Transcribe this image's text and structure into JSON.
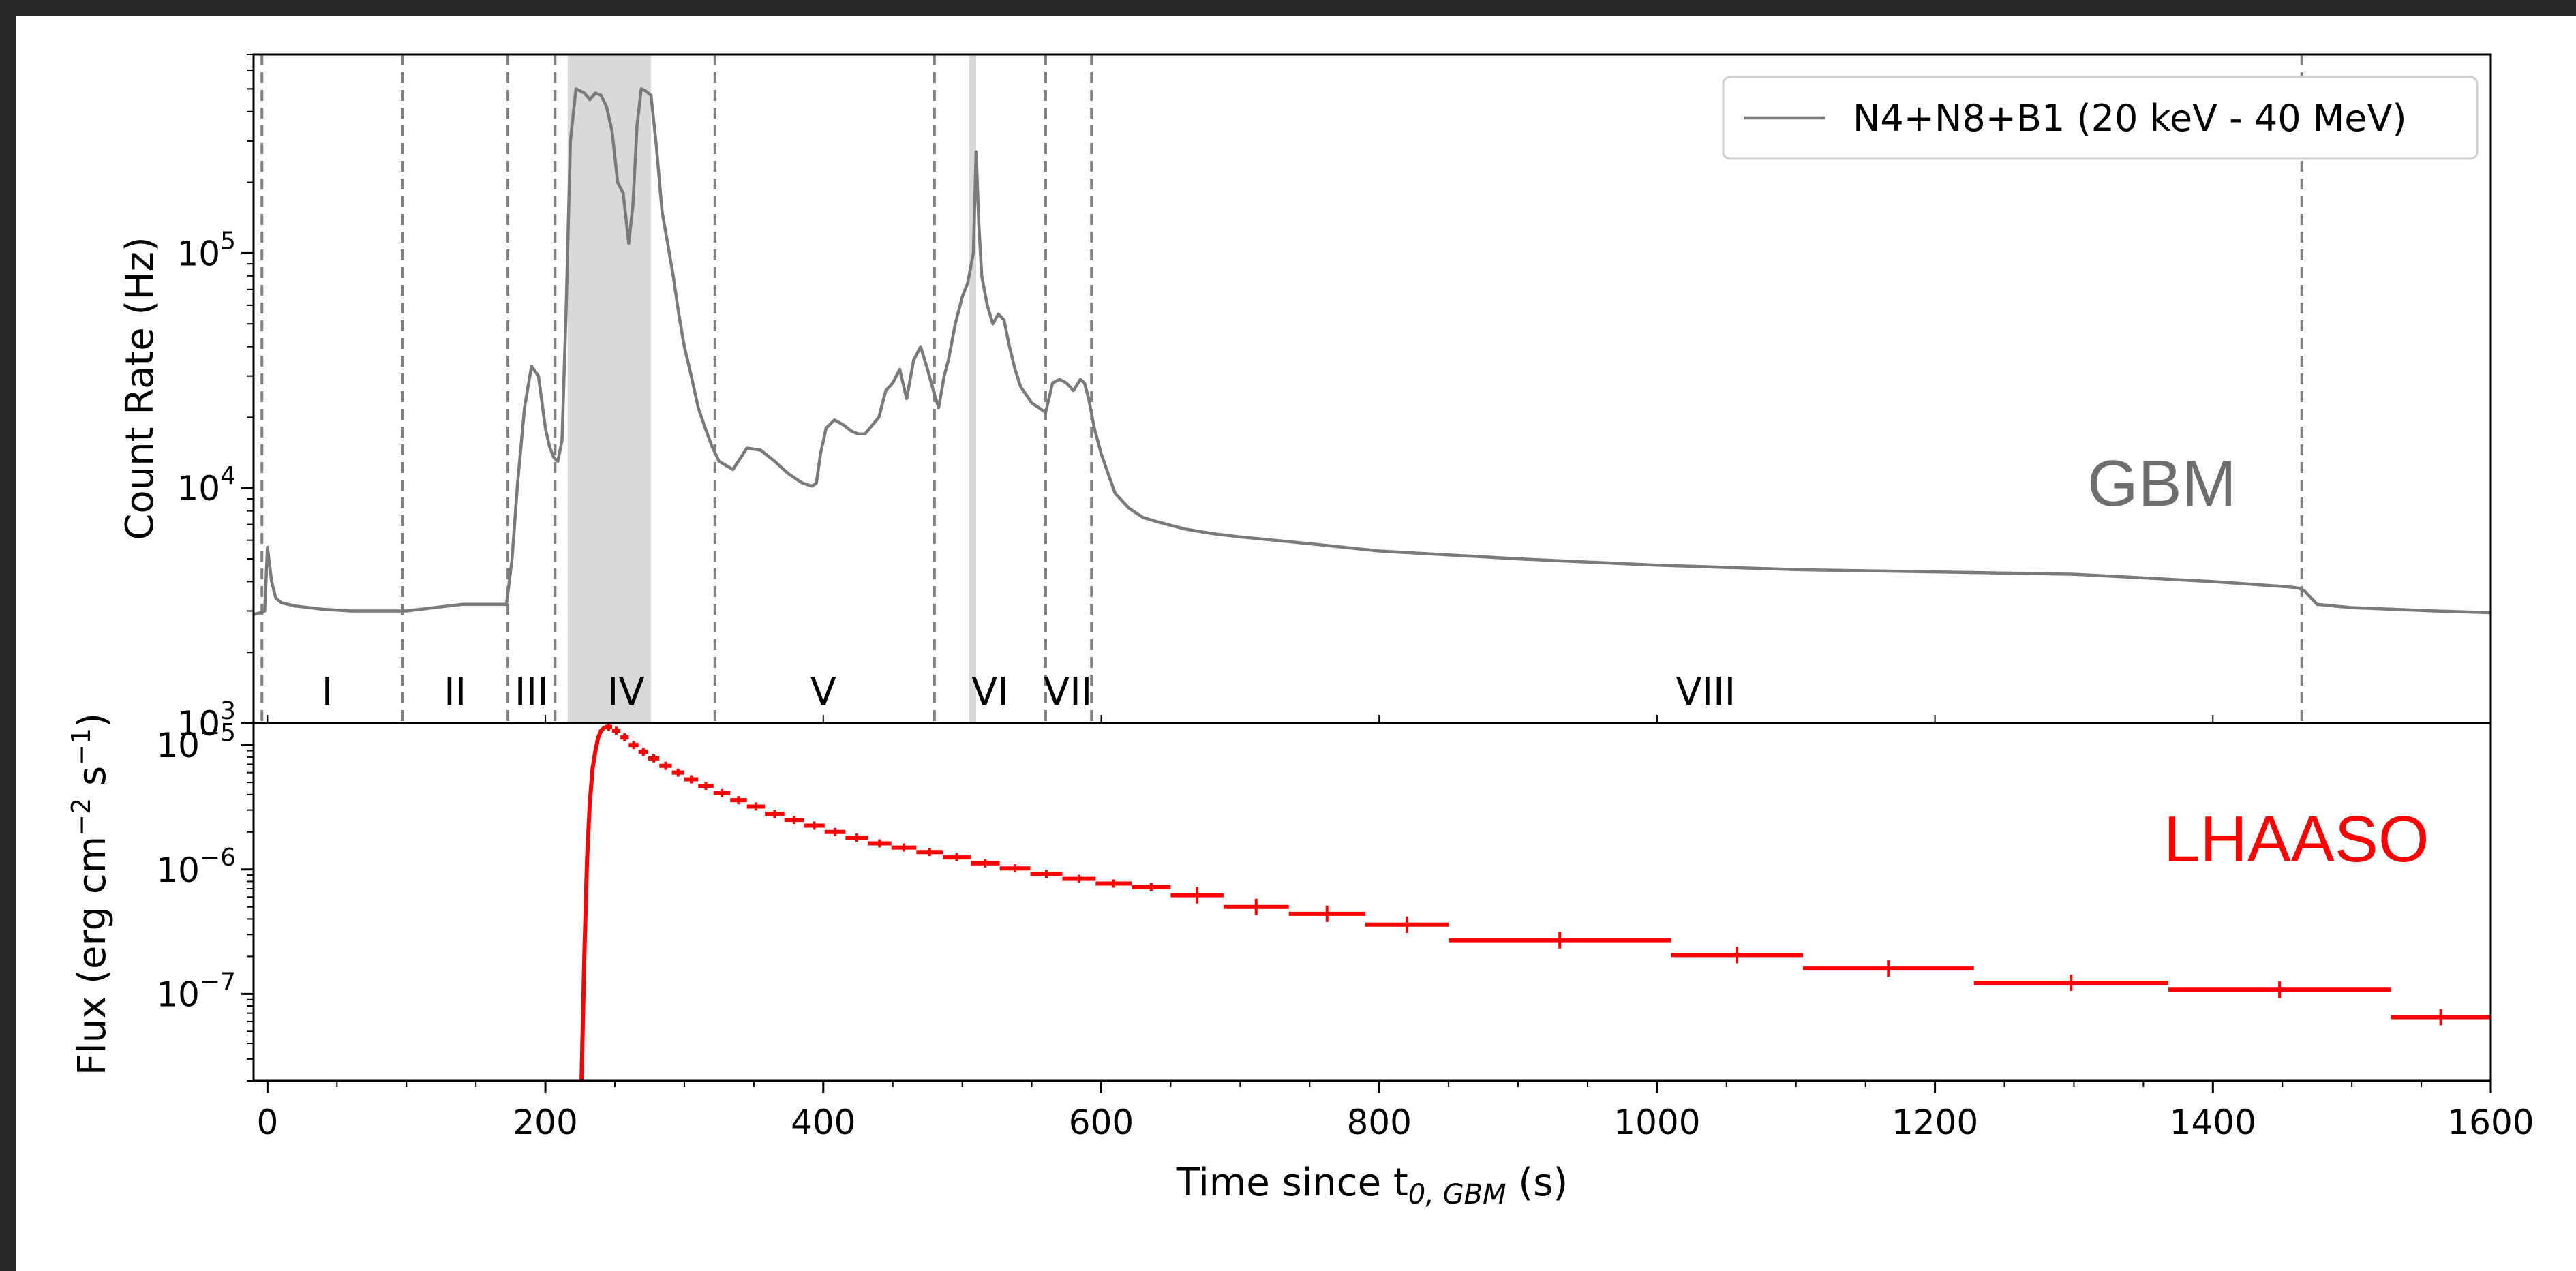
{
  "chart_data": [
    {
      "panel": "top",
      "type": "line",
      "ylabel": "Count Rate (Hz)",
      "yscale": "log",
      "xlim": [
        -10,
        1600
      ],
      "ylim": [
        1000,
        700000
      ],
      "ytick_labels": [
        {
          "value": 1000,
          "base": "10",
          "exp": "3"
        },
        {
          "value": 10000,
          "base": "10",
          "exp": "4"
        },
        {
          "value": 100000,
          "base": "10",
          "exp": "5"
        }
      ],
      "grid": false,
      "legend": {
        "placement": "top-right",
        "entries": [
          "N4+N8+B1 (20 keV - 40 MeV)"
        ]
      },
      "panel_tag": "GBM",
      "colors": {
        "line": "#7a7a7a",
        "tag": "#6e6e6e",
        "shade": "#d9d9d9",
        "dash": "#808080"
      },
      "series": [
        {
          "name": "N4+N8+B1 (20 keV - 40 MeV)",
          "x": [
            -10,
            -5,
            -2,
            0,
            1,
            3,
            6,
            10,
            20,
            40,
            60,
            80,
            100,
            120,
            140,
            160,
            172,
            176,
            180,
            185,
            190,
            195,
            200,
            203,
            206,
            209,
            212,
            215,
            218,
            222,
            228,
            232,
            236,
            240,
            244,
            248,
            252,
            256,
            260,
            263,
            266,
            269,
            272,
            276,
            280,
            284,
            288,
            292,
            296,
            300,
            305,
            310,
            315,
            320,
            325,
            335,
            345,
            355,
            365,
            375,
            385,
            392,
            395,
            398,
            402,
            408,
            415,
            420,
            425,
            430,
            440,
            445,
            450,
            455,
            460,
            465,
            470,
            475,
            480,
            483,
            487,
            490,
            495,
            500,
            504,
            508,
            510,
            512,
            514,
            518,
            522,
            526,
            530,
            534,
            538,
            542,
            546,
            550,
            555,
            560,
            565,
            570,
            575,
            580,
            585,
            588,
            591,
            595,
            600,
            605,
            610,
            620,
            630,
            640,
            660,
            680,
            700,
            750,
            800,
            900,
            1000,
            1100,
            1200,
            1300,
            1400,
            1455,
            1462,
            1466,
            1475,
            1500,
            1530,
            1560,
            1600
          ],
          "y": [
            2900,
            2950,
            3000,
            5600,
            5000,
            4000,
            3400,
            3250,
            3150,
            3050,
            3000,
            3000,
            3000,
            3100,
            3200,
            3200,
            3200,
            5000,
            10500,
            22000,
            33000,
            30000,
            18000,
            15000,
            13500,
            13000,
            16000,
            60000,
            300000,
            500000,
            480000,
            450000,
            480000,
            470000,
            420000,
            330000,
            200000,
            180000,
            110000,
            160000,
            350000,
            500000,
            490000,
            470000,
            280000,
            150000,
            110000,
            80000,
            55000,
            40000,
            30000,
            22000,
            18000,
            15000,
            13000,
            12000,
            14800,
            14500,
            13000,
            11500,
            10500,
            10200,
            10500,
            14000,
            18000,
            19500,
            18500,
            17500,
            17000,
            17000,
            20000,
            26000,
            28000,
            32000,
            24000,
            35000,
            40000,
            32000,
            25000,
            22000,
            30000,
            35000,
            50000,
            65000,
            75000,
            100000,
            270000,
            130000,
            80000,
            60000,
            50000,
            55000,
            52000,
            40000,
            32000,
            27000,
            25000,
            23000,
            22000,
            21000,
            28000,
            29000,
            28000,
            26000,
            29000,
            28000,
            24000,
            18000,
            14000,
            11500,
            9500,
            8200,
            7500,
            7200,
            6700,
            6400,
            6200,
            5800,
            5400,
            5000,
            4700,
            4500,
            4400,
            4300,
            4000,
            3800,
            3750,
            3650,
            3200,
            3100,
            3050,
            3000,
            2950
          ]
        }
      ],
      "vertical_dashed_lines_at": [
        -4,
        97,
        173,
        207,
        322,
        480,
        560,
        593,
        1464
      ],
      "shaded_intervals": [
        [
          216,
          276
        ],
        [
          505,
          510
        ]
      ],
      "period_labels": [
        {
          "x": 43,
          "label": "I"
        },
        {
          "x": 135,
          "label": "II"
        },
        {
          "x": 190,
          "label": "III"
        },
        {
          "x": 258,
          "label": "IV"
        },
        {
          "x": 400,
          "label": "V"
        },
        {
          "x": 520,
          "label": "VI"
        },
        {
          "x": 576,
          "label": "VII"
        },
        {
          "x": 1035,
          "label": "VIII"
        }
      ]
    },
    {
      "panel": "bottom",
      "type": "step",
      "ylabel_parts": {
        "pre": "Flux (erg cm",
        "exp1": "−2",
        "mid": " s",
        "exp2": "−1",
        "post": ")"
      },
      "xlabel_parts": {
        "pre": "Time since t",
        "sub": "0, GBM",
        "post": " (s)"
      },
      "yscale": "log",
      "xlim": [
        -10,
        1600
      ],
      "ylim": [
        2e-08,
        1.5e-05
      ],
      "ytick_labels": [
        {
          "value": 1e-07,
          "base": "10",
          "exp": "−7"
        },
        {
          "value": 1e-06,
          "base": "10",
          "exp": "−6"
        },
        {
          "value": 1e-05,
          "base": "10",
          "exp": "−5"
        }
      ],
      "xticks": [
        0,
        200,
        400,
        600,
        800,
        1000,
        1200,
        1400,
        1600
      ],
      "grid": false,
      "panel_tag": "LHAASO",
      "colors": {
        "line": "#ff0000",
        "tag": "#ff0000"
      },
      "series": [
        {
          "rise_x": [
            226,
            228,
            230,
            232,
            234,
            236,
            238,
            240,
            243
          ],
          "rise_y": [
            2e-08,
            2e-07,
            1.2e-06,
            3.5e-06,
            6.5e-06,
            9e-06,
            1.15e-05,
            1.3e-05,
            1.4e-05
          ],
          "decay_bins": [
            {
              "x0": 243,
              "x1": 248,
              "y": 1.4e-05
            },
            {
              "x0": 248,
              "x1": 254,
              "y": 1.3e-05
            },
            {
              "x0": 254,
              "x1": 260,
              "y": 1.15e-05
            },
            {
              "x0": 260,
              "x1": 267,
              "y": 1e-05
            },
            {
              "x0": 267,
              "x1": 274,
              "y": 8.8e-06
            },
            {
              "x0": 274,
              "x1": 282,
              "y": 7.8e-06
            },
            {
              "x0": 282,
              "x1": 291,
              "y": 6.8e-06
            },
            {
              "x0": 291,
              "x1": 300,
              "y": 6e-06
            },
            {
              "x0": 300,
              "x1": 310,
              "y": 5.3e-06
            },
            {
              "x0": 310,
              "x1": 321,
              "y": 4.7e-06
            },
            {
              "x0": 321,
              "x1": 333,
              "y": 4.1e-06
            },
            {
              "x0": 333,
              "x1": 345,
              "y": 3.6e-06
            },
            {
              "x0": 345,
              "x1": 358,
              "y": 3.2e-06
            },
            {
              "x0": 358,
              "x1": 372,
              "y": 2.8e-06
            },
            {
              "x0": 372,
              "x1": 386,
              "y": 2.5e-06
            },
            {
              "x0": 386,
              "x1": 401,
              "y": 2.25e-06
            },
            {
              "x0": 401,
              "x1": 416,
              "y": 2e-06
            },
            {
              "x0": 416,
              "x1": 432,
              "y": 1.8e-06
            },
            {
              "x0": 432,
              "x1": 449,
              "y": 1.62e-06
            },
            {
              "x0": 449,
              "x1": 467,
              "y": 1.5e-06
            },
            {
              "x0": 467,
              "x1": 486,
              "y": 1.38e-06
            },
            {
              "x0": 486,
              "x1": 506,
              "y": 1.25e-06
            },
            {
              "x0": 506,
              "x1": 527,
              "y": 1.12e-06
            },
            {
              "x0": 527,
              "x1": 549,
              "y": 1.02e-06
            },
            {
              "x0": 549,
              "x1": 572,
              "y": 9.2e-07
            },
            {
              "x0": 572,
              "x1": 596,
              "y": 8.4e-07
            },
            {
              "x0": 596,
              "x1": 622,
              "y": 7.7e-07
            },
            {
              "x0": 622,
              "x1": 650,
              "y": 7.2e-07
            },
            {
              "x0": 650,
              "x1": 688,
              "y": 6.2e-07
            },
            {
              "x0": 688,
              "x1": 735,
              "y": 5e-07
            },
            {
              "x0": 735,
              "x1": 790,
              "y": 4.4e-07
            },
            {
              "x0": 790,
              "x1": 850,
              "y": 3.6e-07
            },
            {
              "x0": 850,
              "x1": 1010,
              "y": 2.7e-07
            },
            {
              "x0": 1010,
              "x1": 1105,
              "y": 2.05e-07
            },
            {
              "x0": 1105,
              "x1": 1228,
              "y": 1.6e-07
            },
            {
              "x0": 1228,
              "x1": 1368,
              "y": 1.23e-07
            },
            {
              "x0": 1368,
              "x1": 1528,
              "y": 1.08e-07
            },
            {
              "x0": 1528,
              "x1": 1600,
              "y": 6.5e-08
            }
          ]
        }
      ]
    }
  ]
}
